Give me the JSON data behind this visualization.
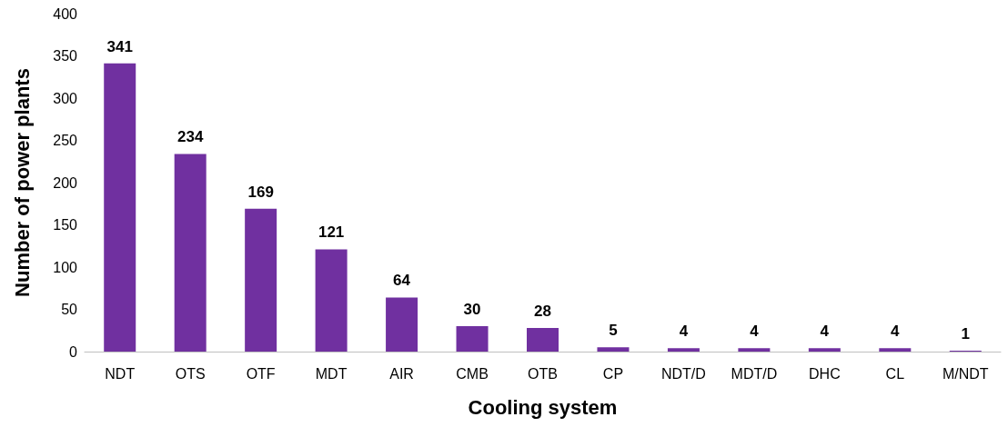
{
  "chart_data": {
    "type": "bar",
    "xlabel": "Cooling system",
    "ylabel": "Number of power plants",
    "categories": [
      "NDT",
      "OTS",
      "OTF",
      "MDT",
      "AIR",
      "CMB",
      "OTB",
      "CP",
      "NDT/D",
      "MDT/D",
      "DHC",
      "CL",
      "M/NDT"
    ],
    "values": [
      341,
      234,
      169,
      121,
      64,
      30,
      28,
      5,
      4,
      4,
      4,
      4,
      1
    ],
    "color": "#7030a0",
    "ylim": [
      0,
      400
    ],
    "yticks": [
      0,
      50,
      100,
      150,
      200,
      250,
      300,
      350,
      400
    ],
    "grid": false,
    "data_labels": true
  }
}
